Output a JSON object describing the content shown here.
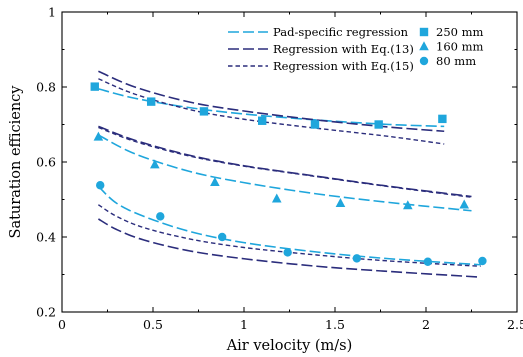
{
  "chart_data": {
    "type": "scatter",
    "xlabel": "Air velocity (m/s)",
    "ylabel": "Saturation efficiency",
    "xlim": [
      0,
      2.5
    ],
    "ylim": [
      0.2,
      1.0
    ],
    "xticks": [
      "0",
      "0.5",
      "1",
      "1.5",
      "2",
      "2.5"
    ],
    "yticks": [
      "0.2",
      "0.4",
      "0.6",
      "0.8",
      "1"
    ],
    "grid": false,
    "legend_placement": "top-right",
    "colors": {
      "light": "#1fa6dc",
      "dark": "#2b2d7c"
    },
    "line_legend": [
      {
        "label": "Pad-specific regression",
        "style": "long-dash",
        "color": "#1fa6dc"
      },
      {
        "label": "Regression with Eq.(13)",
        "style": "long-dash",
        "color": "#2b2d7c"
      },
      {
        "label": "Regression with Eq.(15)",
        "style": "short-dash",
        "color": "#2b2d7c"
      }
    ],
    "marker_legend": [
      {
        "label": "250 mm",
        "marker": "square",
        "color": "#1fa6dc"
      },
      {
        "label": "160 mm",
        "marker": "triangle",
        "color": "#1fa6dc"
      },
      {
        "label": "80 mm",
        "marker": "circle",
        "color": "#1fa6dc"
      }
    ],
    "points": [
      {
        "thickness": "250 mm",
        "marker": "square",
        "x": [
          0.18,
          0.49,
          0.78,
          1.1,
          1.39,
          1.74,
          2.09
        ],
        "y": [
          0.801,
          0.761,
          0.735,
          0.71,
          0.7,
          0.7,
          0.715
        ]
      },
      {
        "thickness": "160 mm",
        "marker": "triangle",
        "x": [
          0.2,
          0.51,
          0.84,
          1.18,
          1.53,
          1.9,
          2.21
        ],
        "y": [
          0.667,
          0.593,
          0.546,
          0.502,
          0.49,
          0.484,
          0.486
        ]
      },
      {
        "thickness": "80 mm",
        "marker": "circle",
        "x": [
          0.21,
          0.54,
          0.88,
          1.24,
          1.62,
          2.01,
          2.31
        ],
        "y": [
          0.538,
          0.455,
          0.4,
          0.359,
          0.343,
          0.334,
          0.336
        ]
      }
    ],
    "curves": [
      {
        "thickness": "250 mm",
        "fit": "Pad-specific regression",
        "style": "long-dash",
        "color": "#1fa6dc",
        "x": [
          0.2,
          0.4,
          0.7,
          1.0,
          1.4,
          1.8,
          2.1
        ],
        "y": [
          0.795,
          0.77,
          0.745,
          0.728,
          0.712,
          0.7,
          0.695
        ]
      },
      {
        "thickness": "250 mm",
        "fit": "Regression with Eq.(13)",
        "style": "long-dash",
        "color": "#2b2d7c",
        "x": [
          0.2,
          0.4,
          0.7,
          1.0,
          1.4,
          1.8,
          2.1
        ],
        "y": [
          0.842,
          0.8,
          0.76,
          0.736,
          0.712,
          0.693,
          0.682
        ]
      },
      {
        "thickness": "250 mm",
        "fit": "Regression with Eq.(15)",
        "style": "short-dash",
        "color": "#2b2d7c",
        "x": [
          0.2,
          0.4,
          0.7,
          1.0,
          1.4,
          1.8,
          2.1
        ],
        "y": [
          0.822,
          0.781,
          0.74,
          0.714,
          0.69,
          0.668,
          0.648
        ]
      },
      {
        "thickness": "160 mm",
        "fit": "Pad-specific regression",
        "style": "long-dash",
        "color": "#1fa6dc",
        "x": [
          0.2,
          0.4,
          0.7,
          1.0,
          1.4,
          1.8,
          2.25
        ],
        "y": [
          0.672,
          0.622,
          0.575,
          0.545,
          0.515,
          0.492,
          0.47
        ]
      },
      {
        "thickness": "160 mm",
        "fit": "Regression with Eq.(13)",
        "style": "long-dash",
        "color": "#2b2d7c",
        "x": [
          0.2,
          0.4,
          0.7,
          1.0,
          1.4,
          1.8,
          2.25
        ],
        "y": [
          0.695,
          0.658,
          0.618,
          0.59,
          0.562,
          0.535,
          0.508
        ]
      },
      {
        "thickness": "160 mm",
        "fit": "Regression with Eq.(15)",
        "style": "short-dash",
        "color": "#2b2d7c",
        "x": [
          0.2,
          0.4,
          0.7,
          1.0,
          1.4,
          1.8,
          2.25
        ],
        "y": [
          0.692,
          0.655,
          0.616,
          0.589,
          0.561,
          0.534,
          0.506
        ]
      },
      {
        "thickness": "80 mm",
        "fit": "Pad-specific regression",
        "style": "long-dash",
        "color": "#1fa6dc",
        "x": [
          0.2,
          0.3,
          0.45,
          0.7,
          1.0,
          1.4,
          1.8,
          2.3
        ],
        "y": [
          0.535,
          0.49,
          0.455,
          0.415,
          0.385,
          0.36,
          0.342,
          0.326
        ]
      },
      {
        "thickness": "80 mm",
        "fit": "Regression with Eq.(13)",
        "style": "long-dash",
        "color": "#2b2d7c",
        "x": [
          0.2,
          0.3,
          0.45,
          0.7,
          1.0,
          1.4,
          1.8,
          2.3
        ],
        "y": [
          0.448,
          0.42,
          0.392,
          0.363,
          0.342,
          0.322,
          0.308,
          0.293
        ]
      },
      {
        "thickness": "80 mm",
        "fit": "Regression with Eq.(15)",
        "style": "short-dash",
        "color": "#2b2d7c",
        "x": [
          0.2,
          0.3,
          0.45,
          0.7,
          1.0,
          1.4,
          1.8,
          2.3
        ],
        "y": [
          0.486,
          0.455,
          0.425,
          0.395,
          0.372,
          0.352,
          0.336,
          0.322
        ]
      }
    ]
  }
}
